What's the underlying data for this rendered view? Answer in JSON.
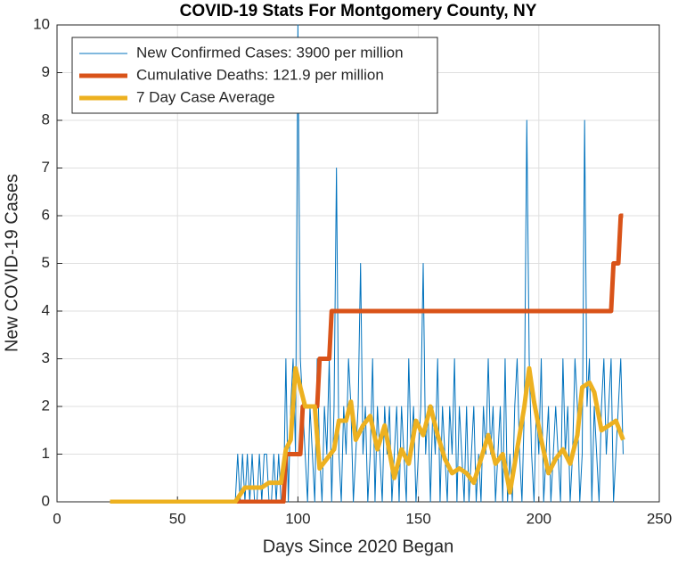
{
  "chart_data": {
    "type": "line",
    "title": "COVID-19 Stats For Montgomery County, NY",
    "x_label": "Days Since 2020 Began",
    "y_label": "New COVID-19 Cases",
    "xlim": [
      0,
      250
    ],
    "xticks": [
      0,
      50,
      100,
      150,
      200,
      250
    ],
    "ylim": [
      0,
      10
    ],
    "yticks": [
      0,
      1,
      2,
      3,
      4,
      5,
      6,
      7,
      8,
      9,
      10
    ],
    "grid": true,
    "legend": "upper left",
    "series": [
      {
        "name": "New Confirmed Cases: 3900 per million",
        "color": "#0072bd",
        "width": 1,
        "x": [
          22,
          70,
          71,
          72,
          73,
          74,
          75,
          76,
          77,
          78,
          79,
          80,
          81,
          82,
          83,
          84,
          85,
          86,
          87,
          88,
          89,
          90,
          91,
          92,
          93,
          94,
          95,
          96,
          97,
          98,
          99,
          100,
          101,
          102,
          103,
          104,
          105,
          106,
          107,
          108,
          109,
          110,
          111,
          112,
          113,
          114,
          115,
          116,
          117,
          118,
          119,
          120,
          121,
          122,
          123,
          124,
          125,
          126,
          127,
          128,
          129,
          130,
          131,
          132,
          133,
          134,
          135,
          136,
          137,
          138,
          139,
          140,
          141,
          142,
          143,
          144,
          145,
          146,
          147,
          148,
          149,
          150,
          151,
          152,
          153,
          154,
          155,
          156,
          157,
          158,
          159,
          160,
          161,
          162,
          163,
          164,
          165,
          166,
          167,
          168,
          169,
          170,
          171,
          172,
          173,
          174,
          175,
          176,
          177,
          178,
          179,
          180,
          181,
          182,
          183,
          184,
          185,
          186,
          187,
          188,
          189,
          190,
          191,
          192,
          193,
          194,
          195,
          196,
          197,
          198,
          199,
          200,
          201,
          202,
          203,
          204,
          205,
          206,
          207,
          208,
          209,
          210,
          211,
          212,
          213,
          214,
          215,
          216,
          217,
          218,
          219,
          220,
          221,
          222,
          223,
          224,
          225,
          226,
          227,
          228,
          229,
          230,
          231,
          232,
          233,
          234,
          235
        ],
        "values": [
          0,
          0,
          0,
          0,
          0,
          0,
          1,
          0,
          1,
          0,
          1,
          0,
          1,
          0,
          0,
          1,
          0,
          1,
          1,
          0,
          0,
          1,
          0,
          1,
          0,
          0,
          3,
          0,
          2,
          3,
          1,
          10,
          3,
          2,
          1,
          0,
          2,
          1,
          0,
          3,
          1,
          0,
          2,
          1,
          3,
          0,
          2,
          7,
          1,
          0,
          2,
          1,
          3,
          2,
          0,
          1,
          2,
          5,
          1,
          2,
          0,
          1,
          3,
          0,
          2,
          1,
          0,
          2,
          1,
          2,
          0,
          1,
          2,
          0,
          2,
          1,
          0,
          3,
          1,
          2,
          0,
          1,
          2,
          5,
          1,
          2,
          0,
          2,
          1,
          3,
          0,
          2,
          1,
          0,
          2,
          1,
          3,
          0,
          2,
          1,
          0,
          2,
          0,
          1,
          2,
          0,
          1,
          0,
          2,
          1,
          3,
          1,
          2,
          0,
          1,
          2,
          0,
          3,
          0,
          1,
          0,
          2,
          3,
          1,
          0,
          2,
          8,
          3,
          1,
          0,
          2,
          1,
          3,
          0,
          1,
          2,
          0,
          1,
          2,
          1,
          0,
          3,
          1,
          2,
          0,
          1,
          3,
          2,
          0,
          1,
          8,
          2,
          3,
          0,
          2,
          1,
          0,
          2,
          3,
          1,
          2,
          3,
          0,
          1,
          2,
          3,
          1
        ]
      },
      {
        "name": "Cumulative Deaths: 121.9 per million",
        "color": "#d95319",
        "width": 5,
        "x": [
          22,
          94,
          95,
          101,
          102,
          108,
          109,
          113,
          114,
          230,
          231,
          233,
          234,
          235
        ],
        "values": [
          0,
          0,
          1,
          1,
          2,
          2,
          3,
          3,
          4,
          4,
          5,
          5,
          6,
          6
        ]
      },
      {
        "name": "7 Day Case Average",
        "color": "#edb120",
        "width": 5,
        "x": [
          22,
          74,
          78,
          85,
          88,
          93,
          95,
          97,
          99,
          101,
          103,
          107,
          109,
          112,
          115,
          117,
          120,
          122,
          124,
          127,
          130,
          133,
          136,
          140,
          143,
          146,
          149,
          152,
          155,
          158,
          161,
          164,
          167,
          170,
          173,
          176,
          179,
          182,
          185,
          188,
          191,
          194,
          196,
          198,
          201,
          204,
          207,
          210,
          213,
          216,
          218,
          221,
          223,
          226,
          229,
          232,
          235
        ],
        "values": [
          0,
          0,
          0.3,
          0.3,
          0.4,
          0.4,
          1.1,
          1.3,
          2.8,
          2.4,
          2,
          2,
          0.7,
          0.9,
          1.1,
          1.7,
          1.7,
          2.1,
          1.3,
          1.6,
          1.8,
          1.1,
          1.6,
          0.5,
          1.1,
          0.8,
          1.7,
          1.4,
          2,
          1.4,
          0.9,
          0.6,
          0.7,
          0.6,
          0.4,
          0.9,
          1.4,
          0.8,
          1,
          0.2,
          1.1,
          2,
          2.8,
          2.1,
          1.3,
          0.6,
          0.9,
          1.1,
          0.8,
          1.4,
          2.4,
          2.5,
          2.3,
          1.5,
          1.6,
          1.7,
          1.3
        ]
      }
    ]
  }
}
